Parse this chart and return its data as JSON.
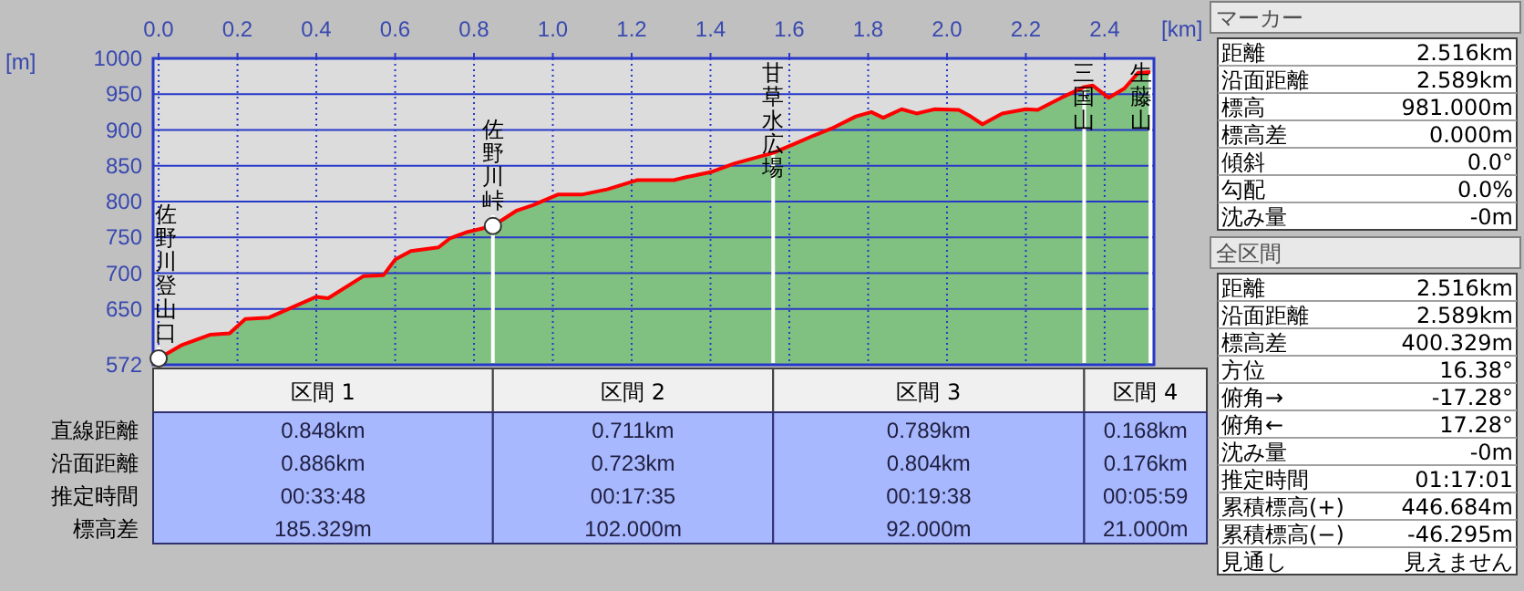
{
  "chart_data": [
    {
      "type": "area",
      "xlabel": "[km]",
      "ylabel": "[m]",
      "xlim": [
        -0.014,
        2.525
      ],
      "ylim": [
        572,
        1000
      ],
      "xticks": [
        {
          "value": 0,
          "label": "0.0"
        },
        {
          "value": 0.2,
          "label": "0.2"
        },
        {
          "value": 0.4,
          "label": "0.4"
        },
        {
          "value": 0.6,
          "label": "0.6"
        },
        {
          "value": 0.8,
          "label": "0.8"
        },
        {
          "value": 1.0,
          "label": "1.0"
        },
        {
          "value": 1.2,
          "label": "1.2"
        },
        {
          "value": 1.4,
          "label": "1.4"
        },
        {
          "value": 1.6,
          "label": "1.6"
        },
        {
          "value": 1.8,
          "label": "1.8"
        },
        {
          "value": 2.0,
          "label": "2.0"
        },
        {
          "value": 2.2,
          "label": "2.2"
        },
        {
          "value": 2.4,
          "label": "2.4"
        }
      ],
      "yticks": [
        572,
        650,
        700,
        750,
        800,
        850,
        900,
        950,
        1000
      ],
      "grid": true,
      "series": [
        {
          "type": "area",
          "color": "#80c080",
          "x": [
            0,
            0.06,
            0.13,
            0.18,
            0.22,
            0.28,
            0.35,
            0.4,
            0.43,
            0.52,
            0.57,
            0.6,
            0.64,
            0.71,
            0.74,
            0.78,
            0.848,
            0.907,
            0.95,
            1.014,
            1.076,
            1.138,
            1.215,
            1.307,
            1.338,
            1.4,
            1.46,
            1.559,
            1.615,
            1.661,
            1.707,
            1.769,
            1.808,
            1.838,
            1.885,
            1.923,
            1.969,
            2.03,
            2.06,
            2.09,
            2.14,
            2.2,
            2.23,
            2.29,
            2.348,
            2.37,
            2.41,
            2.45,
            2.485,
            2.516
          ],
          "values": [
            581,
            600,
            614,
            616,
            636,
            638,
            655,
            667,
            665,
            696,
            697,
            719,
            731,
            736,
            749,
            757,
            766,
            787,
            795,
            810,
            810,
            817,
            830,
            830,
            834,
            841,
            853,
            868,
            881,
            892,
            902,
            919,
            925,
            917,
            929,
            923,
            929,
            928,
            919,
            908,
            923,
            929,
            928,
            945,
            960,
            962,
            945,
            958,
            980,
            981
          ]
        },
        {
          "type": "line",
          "color": "#ff0000",
          "x": [
            0,
            0.06,
            0.13,
            0.18,
            0.22,
            0.28,
            0.35,
            0.4,
            0.43,
            0.52,
            0.57,
            0.6,
            0.64,
            0.71,
            0.74,
            0.78,
            0.848,
            0.907,
            0.95,
            1.014,
            1.076,
            1.138,
            1.215,
            1.307,
            1.338,
            1.4,
            1.46,
            1.559,
            1.615,
            1.661,
            1.707,
            1.769,
            1.808,
            1.838,
            1.885,
            1.923,
            1.969,
            2.03,
            2.06,
            2.09,
            2.14,
            2.2,
            2.23,
            2.29,
            2.348,
            2.37,
            2.41,
            2.45,
            2.485,
            2.516
          ],
          "values": [
            581,
            600,
            614,
            616,
            636,
            638,
            655,
            667,
            665,
            696,
            697,
            719,
            731,
            736,
            749,
            757,
            766,
            787,
            795,
            810,
            810,
            817,
            830,
            830,
            834,
            841,
            853,
            868,
            881,
            892,
            902,
            919,
            925,
            917,
            929,
            923,
            929,
            928,
            919,
            908,
            923,
            929,
            928,
            945,
            960,
            962,
            945,
            958,
            980,
            981
          ]
        },
        {
          "type": "scatter",
          "color": "#ffffff",
          "marker": "circle",
          "x": [
            0,
            0.848
          ],
          "values": [
            581,
            766
          ]
        }
      ],
      "ref_lines": [
        {
          "axis": "x",
          "value": 0,
          "label": "佐野川登山口",
          "color": "#ffffff"
        },
        {
          "axis": "x",
          "value": 0.848,
          "label": "佐野川峠",
          "color": "#ffffff"
        },
        {
          "axis": "x",
          "value": 1.559,
          "label": "甘草水広場",
          "color": "#ffffff"
        },
        {
          "axis": "x",
          "value": 2.348,
          "label": "三国山",
          "color": "#ffffff"
        },
        {
          "axis": "x",
          "value": 2.516,
          "label": "生藤山",
          "color": "#ffffff"
        }
      ]
    },
    {
      "type": "other",
      "categories": [
        "区間 1",
        "区間 2",
        "区間 3",
        "区間 4"
      ],
      "y_categories": [
        "直線距離",
        "沿面距離",
        "推定時間",
        "標高差"
      ],
      "cell_labels": [
        [
          "0.848km",
          "0.711km",
          "0.789km",
          "0.168km"
        ],
        [
          "0.886km",
          "0.723km",
          "0.804km",
          "0.176km"
        ],
        [
          "00:33:48",
          "00:17:35",
          "00:19:38",
          "00:05:59"
        ],
        [
          "185.329m",
          "102.000m",
          "92.000m",
          "21.000m"
        ]
      ]
    },
    {
      "type": "other",
      "title": "マーカー",
      "y_categories": [
        "距離",
        "沿面距離",
        "標高",
        "標高差",
        "傾斜",
        "勾配",
        "沈み量"
      ],
      "cell_labels": [
        [
          "2.516km"
        ],
        [
          "2.589km"
        ],
        [
          "981.000m"
        ],
        [
          "0.000m"
        ],
        [
          "0.0°"
        ],
        [
          "0.0%"
        ],
        [
          "-0m"
        ]
      ]
    },
    {
      "type": "other",
      "title": "全区間",
      "y_categories": [
        "距離",
        "沿面距離",
        "標高差",
        "方位",
        "俯角→",
        "俯角←",
        "沈み量",
        "推定時間",
        "累積標高(+)",
        "累積標高(−)",
        "見通し"
      ],
      "cell_labels": [
        [
          "2.516km"
        ],
        [
          "2.589km"
        ],
        [
          "400.329m"
        ],
        [
          "16.38°"
        ],
        [
          "-17.28°"
        ],
        [
          "17.28°"
        ],
        [
          "-0m"
        ],
        [
          "01:17:01"
        ],
        [
          "446.684m"
        ],
        [
          "-46.295m"
        ],
        [
          "見えません"
        ]
      ]
    }
  ]
}
